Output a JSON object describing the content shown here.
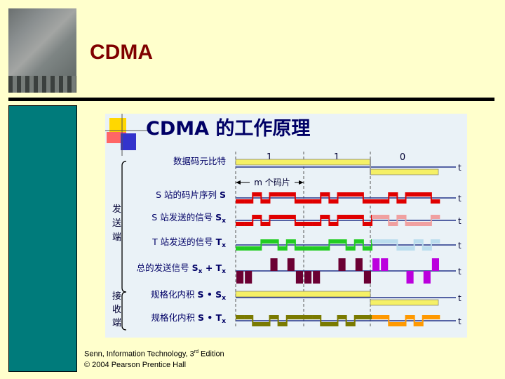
{
  "slide": {
    "title": "CDMA",
    "credit_line1_prefix": "Senn, Information Technology, 3",
    "credit_line1_sup": "rd",
    "credit_line1_suffix": " Edition",
    "credit_line2": "© 2004 Pearson Prentice Hall"
  },
  "diagram": {
    "title": "CDMA 的工作原理",
    "send_label": [
      "发",
      "送",
      "端"
    ],
    "receive_label": [
      "接",
      "收",
      "端"
    ],
    "chips_label": "m 个码片",
    "axis_label": "t",
    "bits": [
      "1",
      "1",
      "0"
    ],
    "rows": [
      {
        "id": "data",
        "label": "数据码元比特"
      },
      {
        "id": "s-chip",
        "label": "S 站的码片序列",
        "symbol": "S"
      },
      {
        "id": "s-sig",
        "label": "S 站发送的信号",
        "symbol": "S",
        "sub": "x"
      },
      {
        "id": "t-sig",
        "label": "T 站发送的信号",
        "symbol": "T",
        "sub": "x"
      },
      {
        "id": "sum",
        "label": "总的发送信号",
        "symbol": "S",
        "sub": "x",
        "plus": "+",
        "symbol2": "T",
        "sub2": "x"
      },
      {
        "id": "inner1",
        "label": "规格化内积",
        "symbol": "S",
        "dot": "•",
        "symbol2": "S",
        "sub2": "x"
      },
      {
        "id": "inner2",
        "label": "规格化内积",
        "symbol": "S",
        "dot": "•",
        "symbol2": "T",
        "sub2": "x"
      }
    ]
  }
}
